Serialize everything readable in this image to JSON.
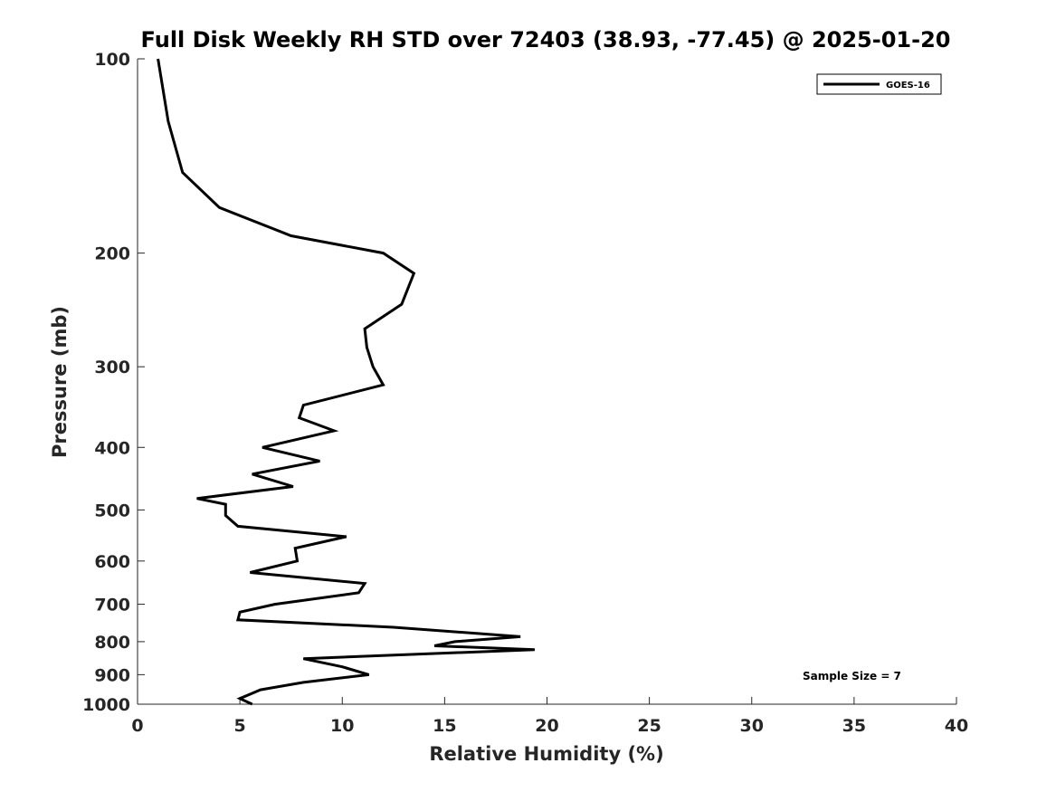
{
  "chart_data": {
    "type": "line",
    "title": "Full Disk Weekly RH STD over 72403 (38.93, -77.45) @ 2025-01-20",
    "xlabel": "Relative Humidity (%)",
    "ylabel": "Pressure (mb)",
    "xlim": [
      0,
      40
    ],
    "ylim": [
      100,
      1000
    ],
    "yscale": "log",
    "y_reversed": true,
    "x_ticks": [
      "0",
      "5",
      "10",
      "15",
      "20",
      "25",
      "30",
      "35",
      "40"
    ],
    "y_ticks": [
      "100",
      "200",
      "300",
      "400",
      "500",
      "600",
      "700",
      "800",
      "900",
      "1000"
    ],
    "grid": false,
    "legend_position": "top-right",
    "series": [
      {
        "name": "GOES-16",
        "color": "#000000",
        "x": [
          1.0,
          1.5,
          2.2,
          4.0,
          7.5,
          12.0,
          13.5,
          12.9,
          11.1,
          11.2,
          11.5,
          12.0,
          8.1,
          7.9,
          9.6,
          6.1,
          8.9,
          5.6,
          7.6,
          2.9,
          4.3,
          4.3,
          4.9,
          10.2,
          7.7,
          7.8,
          5.5,
          11.1,
          10.8,
          6.7,
          5.0,
          4.9,
          12.5,
          18.7,
          15.5,
          14.5,
          19.4,
          8.1,
          10.0,
          11.3,
          8.1,
          6.0,
          5.0,
          5.6
        ],
        "y": [
          100,
          125,
          150,
          170,
          188,
          200,
          215,
          240,
          262,
          280,
          300,
          320,
          344,
          360,
          377,
          400,
          420,
          440,
          460,
          480,
          490,
          510,
          530,
          550,
          573,
          600,
          625,
          650,
          672,
          700,
          720,
          740,
          760,
          786,
          800,
          812,
          823,
          850,
          875,
          900,
          925,
          950,
          980,
          1000
        ]
      }
    ],
    "annotations": [
      "Sample Size = 7"
    ]
  }
}
